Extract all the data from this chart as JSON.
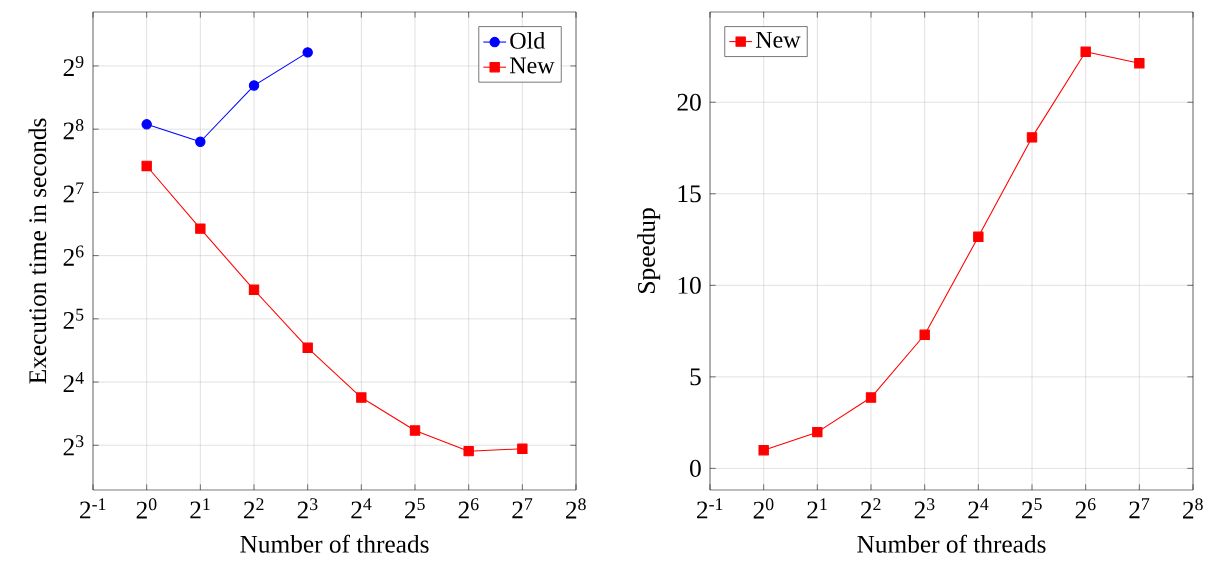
{
  "chart_data": [
    {
      "type": "line",
      "xlabel": "Number of threads",
      "ylabel": "Execution time in seconds",
      "log": "xy",
      "grid": true,
      "legend": "top right",
      "x": [
        1,
        2,
        4,
        8,
        16,
        32,
        64,
        128
      ],
      "xlim": [
        0.5,
        256
      ],
      "xticks": [
        {
          "value": 0.5,
          "label": "2$^{-1}$"
        },
        {
          "value": 1,
          "label": "2$^{0}$"
        },
        {
          "value": 2,
          "label": "2$^{1}$"
        },
        {
          "value": 4,
          "label": "2$^{2}$"
        },
        {
          "value": 8,
          "label": "2$^{3}$"
        },
        {
          "value": 16,
          "label": "2$^{4}$"
        },
        {
          "value": 32,
          "label": "2$^{5}$"
        },
        {
          "value": 64,
          "label": "2$^{6}$"
        },
        {
          "value": 128,
          "label": "2$^{7}$"
        },
        {
          "value": 256,
          "label": "2$^{8}$"
        }
      ],
      "ylim": [
        4.9,
        925
      ],
      "yticks": [
        {
          "value": 8,
          "label": "2$^{3}$"
        },
        {
          "value": 16,
          "label": "2$^{4}$"
        },
        {
          "value": 32,
          "label": "2$^{5}$"
        },
        {
          "value": 64,
          "label": "2$^{6}$"
        },
        {
          "value": 128,
          "label": "2$^{7}$"
        },
        {
          "value": 256,
          "label": "2$^{8}$"
        },
        {
          "value": 512,
          "label": "2$^{9}$"
        }
      ],
      "series": [
        {
          "name": "Old",
          "color": "#0000ff",
          "marker": "circle",
          "x": [
            1,
            2,
            4,
            8
          ],
          "values": [
            270,
            223,
            413,
            594
          ]
        },
        {
          "name": "New",
          "color": "#ff0000",
          "marker": "square",
          "values": [
            171,
            86,
            44,
            23.3,
            13.5,
            9.4,
            7.5,
            7.7
          ]
        }
      ]
    },
    {
      "type": "line",
      "xlabel": "Number of threads",
      "ylabel": "Speedup",
      "log": "x",
      "grid": true,
      "legend": "top left",
      "x": [
        1,
        2,
        4,
        8,
        16,
        32,
        64,
        128
      ],
      "xlim": [
        0.5,
        256
      ],
      "xticks": [
        {
          "value": 0.5,
          "label": "2$^{-1}$"
        },
        {
          "value": 1,
          "label": "2$^{0}$"
        },
        {
          "value": 2,
          "label": "2$^{1}$"
        },
        {
          "value": 4,
          "label": "2$^{2}$"
        },
        {
          "value": 8,
          "label": "2$^{3}$"
        },
        {
          "value": 16,
          "label": "2$^{4}$"
        },
        {
          "value": 32,
          "label": "2$^{5}$"
        },
        {
          "value": 64,
          "label": "2$^{6}$"
        },
        {
          "value": 128,
          "label": "2$^{7}$"
        },
        {
          "value": 256,
          "label": "2$^{8}$"
        }
      ],
      "ylim": [
        -1.18,
        24.93
      ],
      "yticks": [
        0,
        5,
        10,
        15,
        20
      ],
      "series": [
        {
          "name": "New",
          "color": "#ff0000",
          "marker": "square",
          "values": [
            0.99,
            1.98,
            3.87,
            7.3,
            12.65,
            18.08,
            22.76,
            22.13
          ]
        }
      ]
    }
  ]
}
